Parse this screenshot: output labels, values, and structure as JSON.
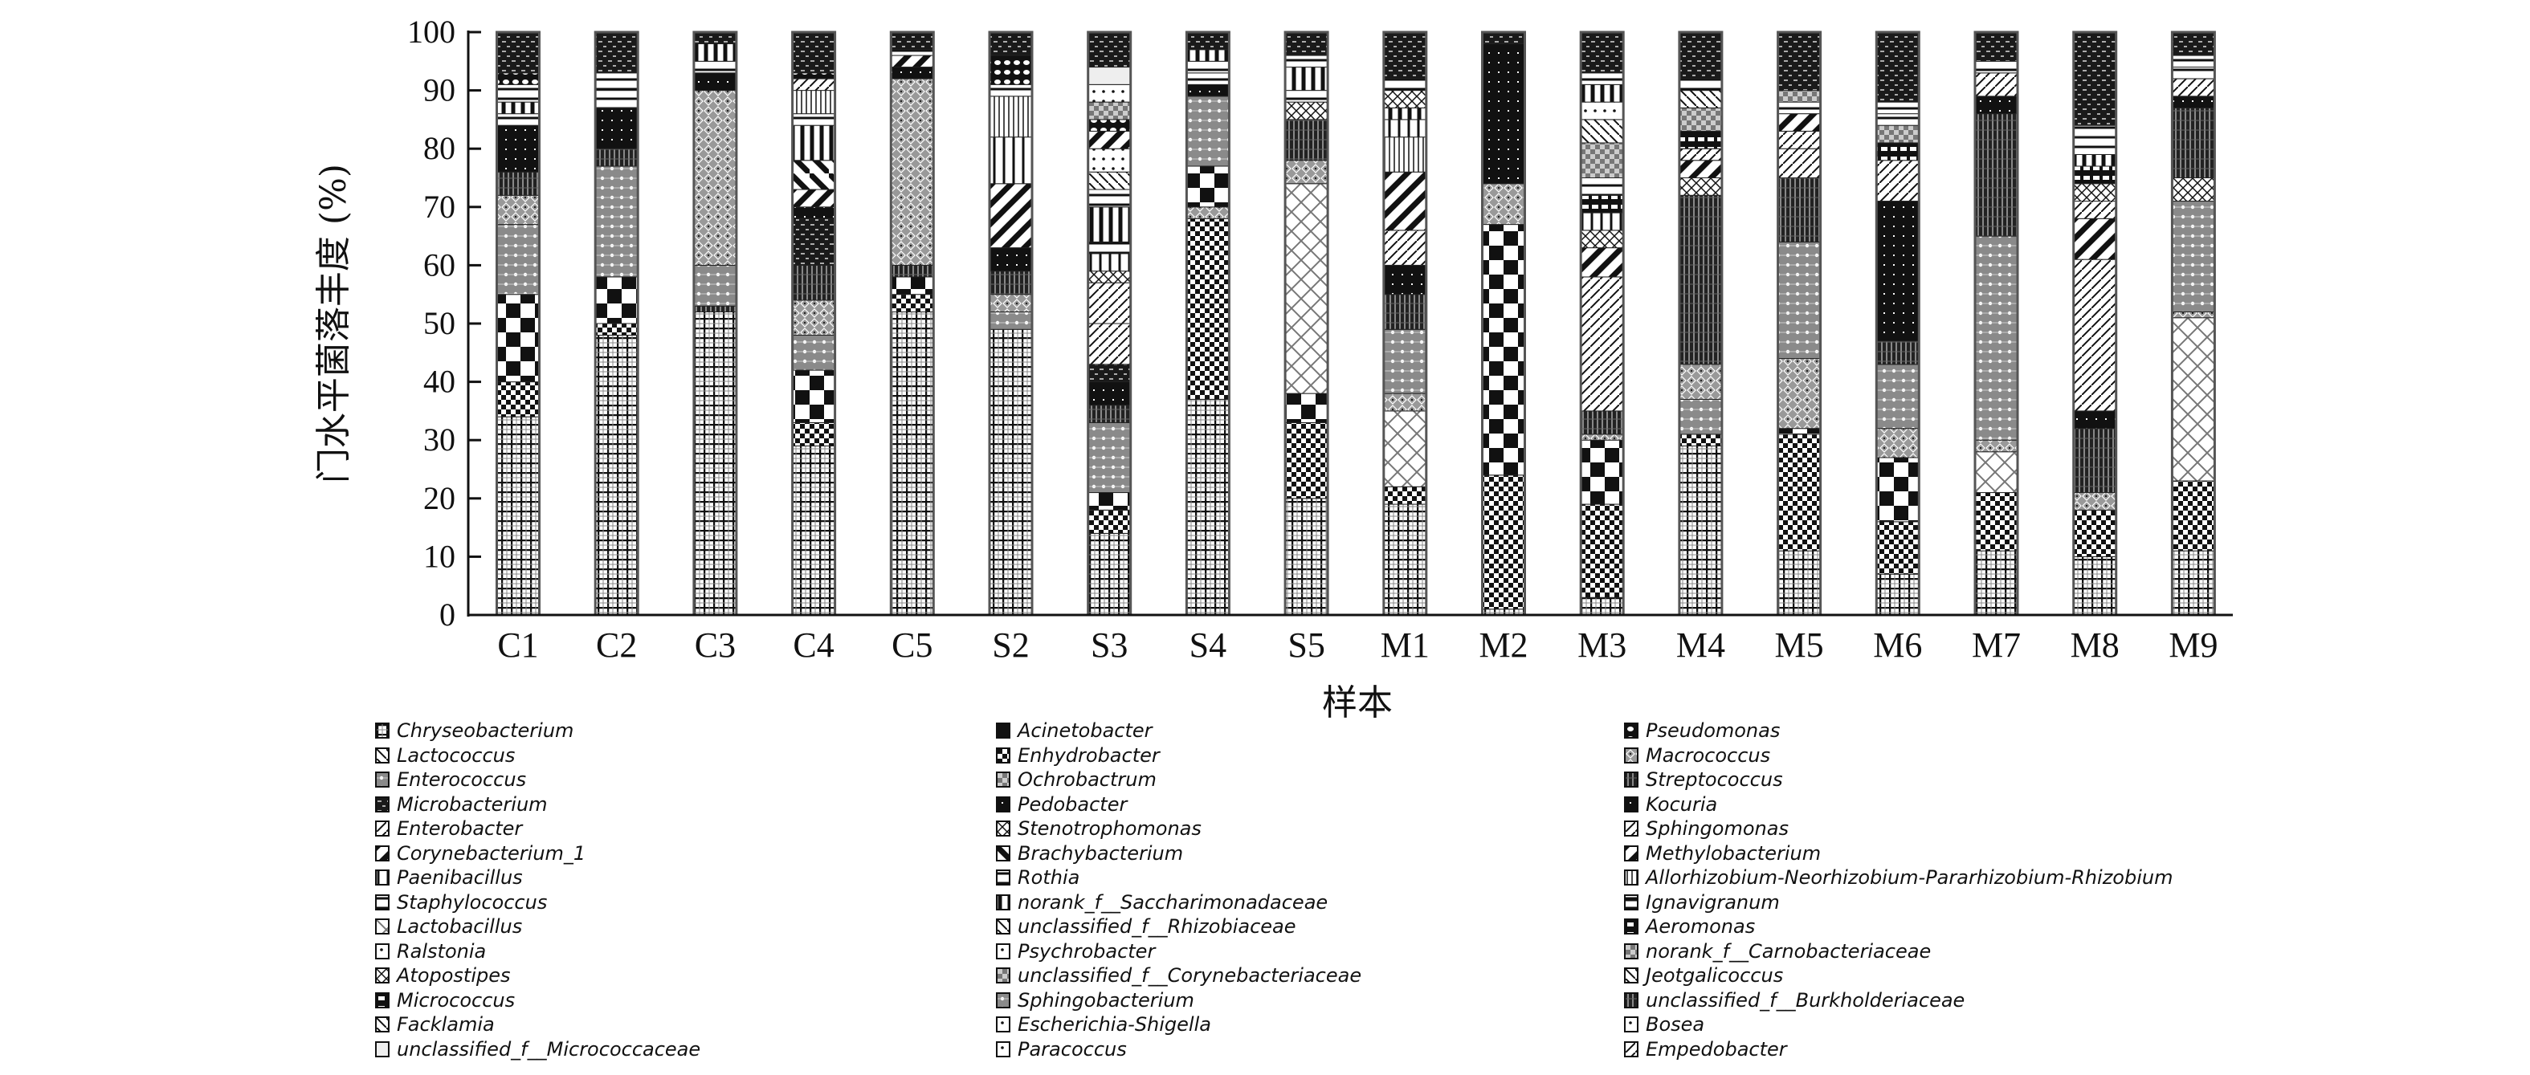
{
  "chart_data": {
    "type": "bar",
    "stacked": true,
    "title": "",
    "xlabel": "样本",
    "ylabel": "门水平菌落丰度 (%)",
    "ylim": [
      0,
      100
    ],
    "yticks": [
      "0",
      "10",
      "20",
      "30",
      "40",
      "50",
      "60",
      "70",
      "80",
      "90",
      "100"
    ],
    "categories": [
      "C1",
      "C2",
      "C3",
      "C4",
      "C5",
      "S2",
      "S3",
      "S4",
      "S5",
      "M1",
      "M2",
      "M3",
      "M4",
      "M5",
      "M6",
      "M7",
      "M8",
      "M9"
    ],
    "legend_position": "bottom",
    "legend": [
      "Chryseobacterium",
      "Lactococcus",
      "Enterococcus",
      "Microbacterium",
      "Enterobacter",
      "Corynebacterium_1",
      "Paenibacillus",
      "Staphylococcus",
      "Lactobacillus",
      "Ralstonia",
      "Atopostipes",
      "Micrococcus",
      "Facklamia",
      "unclassified_f__Micrococcaceae",
      "Acinetobacter",
      "Enhydrobacter",
      "Ochrobactrum",
      "Pedobacter",
      "Stenotrophomonas",
      "Brachybacterium",
      "Rothia",
      "norank_f__Saccharimonadaceae",
      "unclassified_f__Rhizobiaceae",
      "Psychrobacter",
      "unclassified_f__Corynebacteriaceae",
      "Sphingobacterium",
      "Escherichia-Shigella",
      "Paracoccus",
      "Pseudomonas",
      "Macrococcus",
      "Streptococcus",
      "Kocuria",
      "Sphingomonas",
      "Methylobacterium",
      "Allorhizobium-Neorhizobium-Pararhizobium-Rhizobium",
      "Ignavigranum",
      "Aeromonas",
      "norank_f__Carnobacteriaceae",
      "Jeotgalicoccus",
      "unclassified_f__Burkholderiaceae",
      "Bosea",
      "Empedobacter"
    ],
    "series_note": "segments listed bottom-to-top as [legend index, percent]",
    "stacks": {
      "C1": [
        [
          0,
          34
        ],
        [
          15,
          6
        ],
        [
          14,
          15
        ],
        [
          2,
          12
        ],
        [
          29,
          5
        ],
        [
          30,
          4
        ],
        [
          31,
          8
        ],
        [
          7,
          2
        ],
        [
          21,
          2
        ],
        [
          20,
          3
        ],
        [
          28,
          2
        ],
        [
          3,
          7
        ]
      ],
      "C2": [
        [
          0,
          48
        ],
        [
          15,
          2
        ],
        [
          14,
          8
        ],
        [
          2,
          19
        ],
        [
          30,
          3
        ],
        [
          31,
          7
        ],
        [
          7,
          3
        ],
        [
          20,
          3
        ],
        [
          3,
          7
        ]
      ],
      "C3": [
        [
          0,
          52
        ],
        [
          30,
          1
        ],
        [
          2,
          7
        ],
        [
          29,
          30
        ],
        [
          31,
          3
        ],
        [
          20,
          2
        ],
        [
          21,
          3
        ],
        [
          3,
          2
        ]
      ],
      "C4": [
        [
          0,
          29
        ],
        [
          15,
          4
        ],
        [
          14,
          9
        ],
        [
          2,
          6
        ],
        [
          29,
          6
        ],
        [
          30,
          6
        ],
        [
          3,
          8
        ],
        [
          31,
          2
        ],
        [
          5,
          3
        ],
        [
          19,
          5
        ],
        [
          21,
          6
        ],
        [
          7,
          2
        ],
        [
          34,
          4
        ],
        [
          4,
          2
        ],
        [
          28,
          1
        ],
        [
          3,
          7
        ]
      ],
      "C5": [
        [
          0,
          52
        ],
        [
          15,
          3
        ],
        [
          14,
          3
        ],
        [
          30,
          2
        ],
        [
          29,
          32
        ],
        [
          31,
          2
        ],
        [
          5,
          2
        ],
        [
          7,
          1
        ],
        [
          3,
          3
        ]
      ],
      "S2": [
        [
          0,
          49
        ],
        [
          2,
          3
        ],
        [
          29,
          3
        ],
        [
          30,
          4
        ],
        [
          31,
          4
        ],
        [
          5,
          11
        ],
        [
          6,
          8
        ],
        [
          34,
          7
        ],
        [
          7,
          2
        ],
        [
          28,
          5
        ],
        [
          3,
          4
        ]
      ],
      "S3": [
        [
          0,
          14
        ],
        [
          15,
          4
        ],
        [
          14,
          3
        ],
        [
          2,
          12
        ],
        [
          30,
          3
        ],
        [
          31,
          4
        ],
        [
          3,
          3
        ],
        [
          4,
          7
        ],
        [
          32,
          7
        ],
        [
          10,
          2
        ],
        [
          6,
          3
        ],
        [
          7,
          2
        ],
        [
          21,
          6
        ],
        [
          20,
          3
        ],
        [
          22,
          3
        ],
        [
          23,
          4
        ],
        [
          5,
          3
        ],
        [
          28,
          2
        ],
        [
          24,
          3
        ],
        [
          9,
          3
        ],
        [
          13,
          3
        ],
        [
          3,
          6
        ]
      ],
      "S4": [
        [
          0,
          37
        ],
        [
          15,
          31
        ],
        [
          29,
          2
        ],
        [
          14,
          7
        ],
        [
          2,
          12
        ],
        [
          31,
          2
        ],
        [
          7,
          2
        ],
        [
          20,
          2
        ],
        [
          21,
          2
        ],
        [
          3,
          3
        ]
      ],
      "S5": [
        [
          0,
          20
        ],
        [
          15,
          13
        ],
        [
          14,
          5
        ],
        [
          8,
          36
        ],
        [
          29,
          4
        ],
        [
          30,
          7
        ],
        [
          18,
          3
        ],
        [
          7,
          2
        ],
        [
          21,
          4
        ],
        [
          20,
          2
        ],
        [
          3,
          4
        ]
      ],
      "M1": [
        [
          0,
          19
        ],
        [
          15,
          3
        ],
        [
          8,
          13
        ],
        [
          29,
          3
        ],
        [
          2,
          11
        ],
        [
          30,
          6
        ],
        [
          31,
          5
        ],
        [
          4,
          6
        ],
        [
          5,
          10
        ],
        [
          34,
          6
        ],
        [
          6,
          3
        ],
        [
          21,
          2
        ],
        [
          18,
          3
        ],
        [
          7,
          2
        ],
        [
          3,
          8
        ]
      ],
      "M2": [
        [
          0,
          1
        ],
        [
          15,
          23
        ],
        [
          14,
          43
        ],
        [
          29,
          7
        ],
        [
          31,
          24
        ],
        [
          3,
          2
        ]
      ],
      "M3": [
        [
          0,
          3
        ],
        [
          15,
          16
        ],
        [
          14,
          11
        ],
        [
          29,
          1
        ],
        [
          30,
          4
        ],
        [
          4,
          23
        ],
        [
          5,
          5
        ],
        [
          18,
          3
        ],
        [
          6,
          3
        ],
        [
          36,
          3
        ],
        [
          7,
          3
        ],
        [
          37,
          6
        ],
        [
          38,
          4
        ],
        [
          40,
          3
        ],
        [
          21,
          3
        ],
        [
          20,
          2
        ],
        [
          3,
          7
        ]
      ],
      "M4": [
        [
          0,
          29
        ],
        [
          15,
          2
        ],
        [
          2,
          6
        ],
        [
          29,
          6
        ],
        [
          30,
          29
        ],
        [
          18,
          3
        ],
        [
          5,
          3
        ],
        [
          32,
          2
        ],
        [
          36,
          3
        ],
        [
          37,
          4
        ],
        [
          38,
          3
        ],
        [
          7,
          2
        ],
        [
          3,
          8
        ]
      ],
      "M5": [
        [
          0,
          11
        ],
        [
          15,
          20
        ],
        [
          14,
          1
        ],
        [
          29,
          12
        ],
        [
          2,
          20
        ],
        [
          30,
          11
        ],
        [
          32,
          5
        ],
        [
          4,
          3
        ],
        [
          5,
          3
        ],
        [
          7,
          2
        ],
        [
          37,
          2
        ],
        [
          3,
          10
        ]
      ],
      "M6": [
        [
          0,
          7
        ],
        [
          15,
          9
        ],
        [
          14,
          11
        ],
        [
          29,
          5
        ],
        [
          2,
          11
        ],
        [
          30,
          4
        ],
        [
          31,
          24
        ],
        [
          32,
          7
        ],
        [
          36,
          3
        ],
        [
          37,
          3
        ],
        [
          7,
          2
        ],
        [
          20,
          2
        ],
        [
          3,
          12
        ]
      ],
      "M7": [
        [
          0,
          11
        ],
        [
          15,
          10
        ],
        [
          8,
          7
        ],
        [
          29,
          2
        ],
        [
          2,
          35
        ],
        [
          30,
          21
        ],
        [
          31,
          3
        ],
        [
          32,
          4
        ],
        [
          7,
          2
        ],
        [
          3,
          5
        ]
      ],
      "M8": [
        [
          0,
          10
        ],
        [
          15,
          8
        ],
        [
          29,
          3
        ],
        [
          30,
          11
        ],
        [
          31,
          3
        ],
        [
          4,
          26
        ],
        [
          5,
          7
        ],
        [
          32,
          3
        ],
        [
          18,
          3
        ],
        [
          36,
          3
        ],
        [
          21,
          2
        ],
        [
          7,
          3
        ],
        [
          20,
          2
        ],
        [
          3,
          16
        ]
      ],
      "M9": [
        [
          0,
          11
        ],
        [
          15,
          12
        ],
        [
          8,
          28
        ],
        [
          29,
          1
        ],
        [
          2,
          19
        ],
        [
          10,
          4
        ],
        [
          30,
          12
        ],
        [
          31,
          2
        ],
        [
          32,
          3
        ],
        [
          7,
          2
        ],
        [
          20,
          2
        ],
        [
          3,
          4
        ]
      ]
    }
  }
}
